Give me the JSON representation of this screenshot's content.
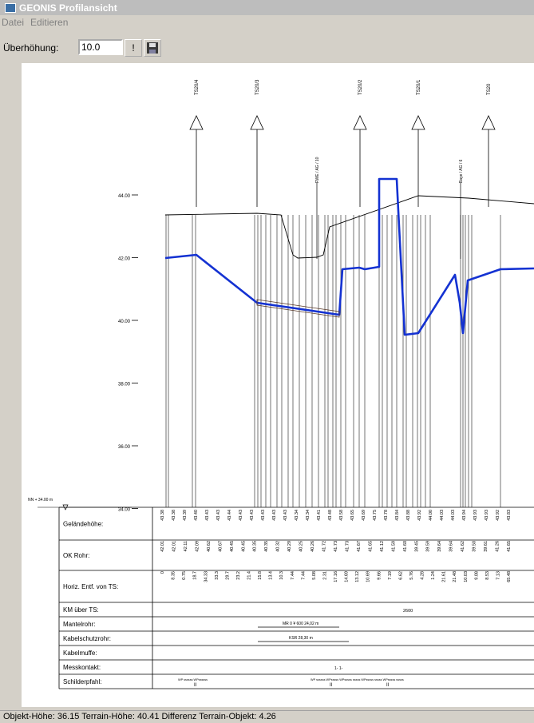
{
  "window": {
    "title": "GEONIS Profilansicht"
  },
  "menu": {
    "items": [
      "Datei",
      "Editieren"
    ]
  },
  "toolbar": {
    "label": "Überhöhung:",
    "value": "10.0",
    "apply_label": "!"
  },
  "profile": {
    "y_axis": {
      "ticks": [
        "44.00",
        "42.00",
        "40.00",
        "38.00",
        "36.00",
        "34.00"
      ]
    },
    "datum_label": "NN + 34.00 m",
    "structures": [
      {
        "name": "TS20/4",
        "arrow": true
      },
      {
        "name": "TS20/3",
        "arrow": true
      },
      {
        "name": "RWE / AG / 10",
        "arrow": false
      },
      {
        "name": "TS20/2",
        "arrow": true
      },
      {
        "name": "TS20/1",
        "arrow": true
      },
      {
        "name": "Baye / AG / 6",
        "arrow": false
      },
      {
        "name": "TS20",
        "arrow": true
      }
    ],
    "table": {
      "rows": [
        "Geländehöhe:",
        "OK Rohr:",
        "Horiz. Entf. von TS:",
        "KM über TS:",
        "Mantelrohr:",
        "Kabelschutzrohr:",
        "Kabelmuffe:",
        "Messkontakt:",
        "Schilderpfahl:"
      ],
      "gelaende": [
        "43.38",
        "43.38",
        "43.39",
        "43.40",
        "43.43",
        "43.43",
        "43.44",
        "43.43",
        "43.43",
        "43.43",
        "43.43",
        "43.43",
        "43.34",
        "43.34",
        "43.41",
        "43.48",
        "43.58",
        "43.65",
        "43.69",
        "43.75",
        "43.78",
        "43.84",
        "43.88",
        "43.92",
        "44.00",
        "44.03",
        "44.03",
        "43.94",
        "43.93",
        "43.93",
        "43.92",
        "43.83"
      ],
      "ok_rohr": [
        "42.01",
        "42.01",
        "42.11",
        "42.09",
        "40.62",
        "40.67",
        "40.45",
        "40.45",
        "40.35",
        "40.35",
        "40.32",
        "40.29",
        "40.25",
        "40.26",
        "41.72",
        "41.73",
        "41.73",
        "41.67",
        "41.65",
        "41.12",
        "41.59",
        "41.60",
        "39.45",
        "39.59",
        "39.64",
        "39.64",
        "41.62",
        "39.50",
        "39.61",
        "41.26",
        "41.65"
      ],
      "horiz": [
        "0",
        "8.35",
        "0.75",
        "18.7",
        "34.33",
        "33.3",
        "29.7",
        "23.2",
        "21.4",
        "15.8",
        "13.4",
        "10.3",
        "7.44",
        "7.44",
        "5.08",
        "2.31",
        "17.16",
        "14.69",
        "13.12",
        "10.69",
        "9.66",
        "7.19",
        "6.62",
        "5.76",
        "4.28",
        "1.24",
        "21.61",
        "21.48",
        "10.03",
        "9.08",
        "8.53",
        "7.13",
        "65.48"
      ],
      "km": "2600",
      "mantelrohr": "MR 0 ¥ 600 24,02 m",
      "kabelschutzrohr": "KSR 28,30 m",
      "messkontakt": "1- 1-",
      "schilder": [
        "WP ssssss WPssssss",
        "WP ssssss WPsssss WPsssss sssss WPsssss sssss WPsssss sssss"
      ],
      "schilder_marks": [
        "II",
        "II",
        "II"
      ]
    }
  },
  "status": {
    "text": "Objekt-Höhe: 36.15 Terrain-Höhe: 40.41 Differenz Terrain-Objekt: 4.26"
  },
  "colors": {
    "pipe": "#1432d2",
    "terrain": "#000000",
    "titlebar": "#bdbdbd"
  }
}
